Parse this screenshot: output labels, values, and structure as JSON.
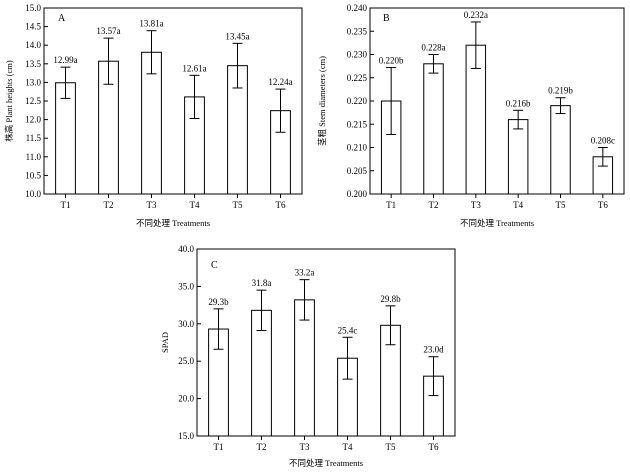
{
  "chart_data": [
    {
      "type": "bar",
      "panel_letter": "A",
      "categories": [
        "T1",
        "T2",
        "T3",
        "T4",
        "T5",
        "T6"
      ],
      "values": [
        12.99,
        13.57,
        13.81,
        12.61,
        13.45,
        12.24
      ],
      "errors": [
        0.42,
        0.62,
        0.58,
        0.58,
        0.6,
        0.58
      ],
      "labels": [
        "12.99a",
        "13.57a",
        "13.81a",
        "12.61a",
        "13.45a",
        "12.24a"
      ],
      "xlabel": "不同处理 Treatments",
      "ylabel": "株高 Plant heights (cm)",
      "ylim": [
        10.0,
        15.0
      ],
      "ticks": [
        "10.0",
        "10.5",
        "11.0",
        "11.5",
        "12.0",
        "12.5",
        "13.0",
        "13.5",
        "14.0",
        "14.5",
        "15.0"
      ],
      "grid": false
    },
    {
      "type": "bar",
      "panel_letter": "B",
      "categories": [
        "T1",
        "T2",
        "T3",
        "T4",
        "T5",
        "T6"
      ],
      "values": [
        0.22,
        0.228,
        0.232,
        0.216,
        0.219,
        0.208
      ],
      "errors": [
        0.0072,
        0.002,
        0.005,
        0.002,
        0.0017,
        0.002
      ],
      "labels": [
        "0.220b",
        "0.228a",
        "0.232a",
        "0.216b",
        "0.219b",
        "0.208c"
      ],
      "xlabel": "不同处理 Treatments",
      "ylabel": "茎粗 Stem diameters (cm)",
      "ylim": [
        0.2,
        0.24
      ],
      "ticks": [
        "0.200",
        "0.205",
        "0.210",
        "0.215",
        "0.220",
        "0.225",
        "0.230",
        "0.235",
        "0.240"
      ],
      "grid": false
    },
    {
      "type": "bar",
      "panel_letter": "C",
      "categories": [
        "T1",
        "T2",
        "T3",
        "T4",
        "T5",
        "T6"
      ],
      "values": [
        29.3,
        31.8,
        33.2,
        25.4,
        29.8,
        23.0
      ],
      "errors": [
        2.7,
        2.7,
        2.7,
        2.8,
        2.6,
        2.6
      ],
      "labels": [
        "29.3b",
        "31.8a",
        "33.2a",
        "25.4c",
        "29.8b",
        "23.0d"
      ],
      "xlabel": "不同处理 Treatments",
      "ylabel": "SPAD",
      "ylim": [
        15.0,
        40.0
      ],
      "ticks": [
        "15.0",
        "20.0",
        "25.0",
        "30.0",
        "35.0",
        "40.0"
      ],
      "grid": false
    }
  ]
}
